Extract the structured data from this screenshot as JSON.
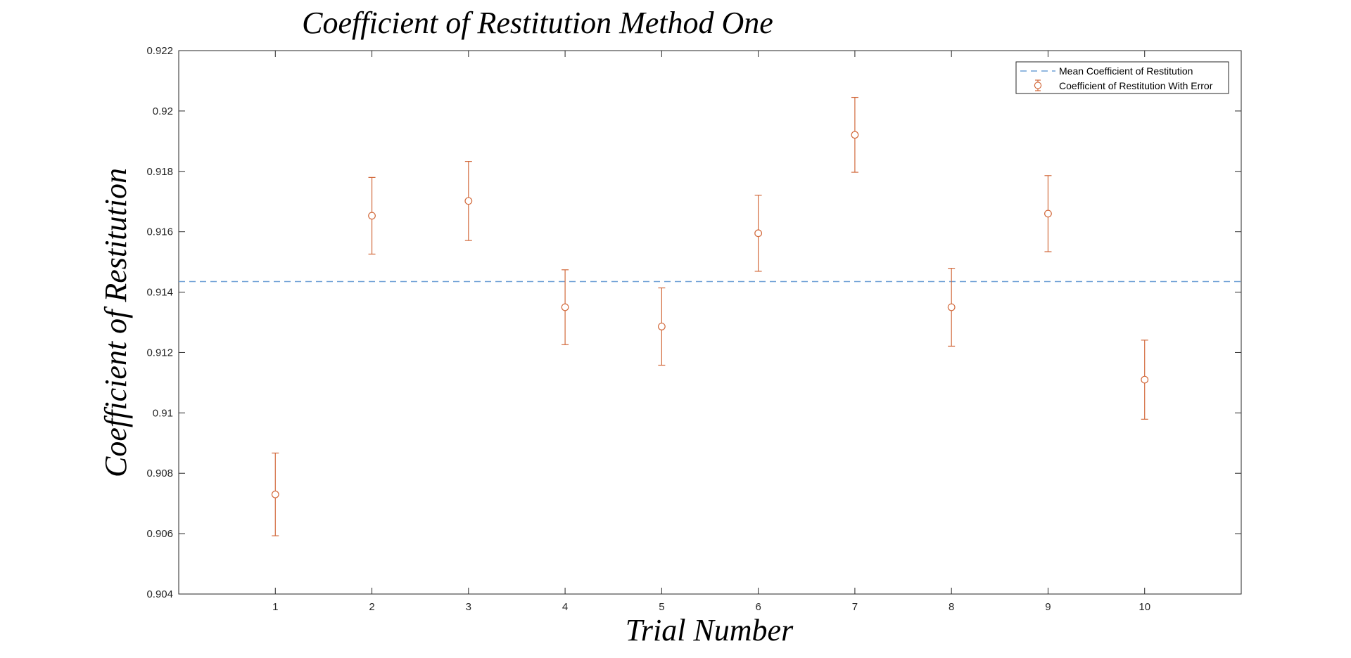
{
  "chart_data": {
    "type": "scatter",
    "title": "Coefficient of Restitution Method One",
    "xlabel": "Trial Number",
    "ylabel": "Coefficient of Restitution",
    "xlim": [
      0,
      11
    ],
    "ylim": [
      0.904,
      0.922
    ],
    "xticks": [
      1,
      2,
      3,
      4,
      5,
      6,
      7,
      8,
      9,
      10
    ],
    "yticks": [
      0.904,
      0.906,
      0.908,
      0.91,
      0.912,
      0.914,
      0.916,
      0.918,
      0.92,
      0.922
    ],
    "ytick_labels": [
      "0.904",
      "0.906",
      "0.908",
      "0.91",
      "0.912",
      "0.914",
      "0.916",
      "0.918",
      "0.92",
      "0.922"
    ],
    "grid": false,
    "legend_position": "top-right",
    "mean": {
      "name": "Mean Coefficient of Restitution",
      "value": 0.91435,
      "color": "#6fa0d6",
      "style": "dashed"
    },
    "series": [
      {
        "name": "Coefficient of Restitution With Error",
        "color": "#d2693b",
        "marker": "circle",
        "x": [
          1,
          2,
          3,
          4,
          5,
          6,
          7,
          8,
          9,
          10
        ],
        "y": [
          0.9073,
          0.91653,
          0.91702,
          0.9135,
          0.91286,
          0.91595,
          0.91921,
          0.9135,
          0.9166,
          0.9111
        ],
        "error": [
          0.00137,
          0.00127,
          0.00131,
          0.00124,
          0.00128,
          0.00126,
          0.00124,
          0.00129,
          0.00126,
          0.00131
        ]
      }
    ]
  }
}
